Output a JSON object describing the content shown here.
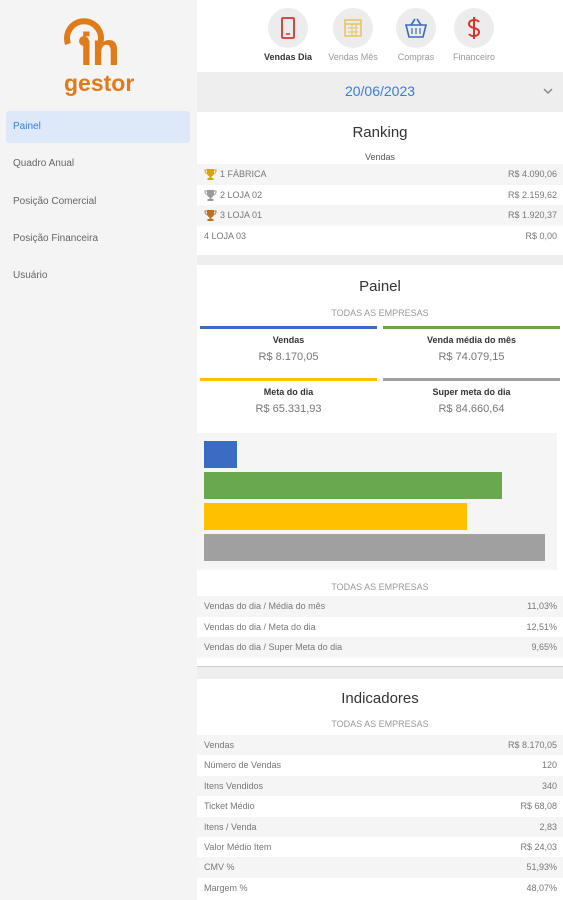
{
  "logo": {
    "top": "in",
    "bottom": "gestor"
  },
  "menu": [
    "Painel",
    "Quadro Anual",
    "Posição Comercial",
    "Posição Financeira",
    "Usuário"
  ],
  "tabs": [
    "Vendas Dia",
    "Vendas Mês",
    "Compras",
    "Financeiro"
  ],
  "date": "20/06/2023",
  "ranking": {
    "title": "Ranking",
    "subtitle": "Vendas",
    "rows": [
      {
        "name": "1 FÁBRICA",
        "value": "R$ 4.090,06",
        "trophy_color": "#d9a400"
      },
      {
        "name": "2 LOJA 02",
        "value": "R$ 2.159,62",
        "trophy_color": "#9a9a9a"
      },
      {
        "name": "3 LOJA 01",
        "value": "R$ 1.920,37",
        "trophy_color": "#c0711f"
      },
      {
        "name": "4 LOJA 03",
        "value": "R$ 0,00"
      }
    ]
  },
  "painel": {
    "title": "Painel",
    "subtitle": "TODAS AS EMPRESAS",
    "cards": [
      {
        "label": "Vendas",
        "value": 8170.05,
        "value_label": "R$ 8.170,05",
        "color": "#3a6cc4"
      },
      {
        "label": "Venda média do mês",
        "value": 74079.15,
        "value_label": "R$ 74.079,15",
        "color": "#6aa84f"
      },
      {
        "label": "Meta do dia",
        "value": 65331.93,
        "value_label": "R$ 65.331,93",
        "color": "#ffc000"
      },
      {
        "label": "Super meta do dia",
        "value": 84660.64,
        "value_label": "R$ 84.660,64",
        "color": "#a0a0a0"
      }
    ],
    "summary_subtitle": "TODAS AS EMPRESAS",
    "ratios": [
      {
        "label": "Vendas do dia / Média do mês",
        "value": "11,03%"
      },
      {
        "label": "Vendas do dia / Meta do dia",
        "value": "12,51%"
      },
      {
        "label": "Vendas do dia / Super Meta do dia",
        "value": "9,65%"
      }
    ]
  },
  "indicadores": {
    "title": "Indicadores",
    "subtitle": "TODAS AS EMPRESAS",
    "rows": [
      {
        "label": "Vendas",
        "value": "R$ 8.170,05"
      },
      {
        "label": "Número de Vendas",
        "value": "120"
      },
      {
        "label": "Itens Vendidos",
        "value": "340"
      },
      {
        "label": "Ticket Médio",
        "value": "R$ 68,08"
      },
      {
        "label": "Itens / Venda",
        "value": "2,83"
      },
      {
        "label": "Valor Médio Item",
        "value": "R$ 24,03"
      },
      {
        "label": "CMV %",
        "value": "51,93%"
      },
      {
        "label": "Margem %",
        "value": "48,07%"
      }
    ]
  }
}
